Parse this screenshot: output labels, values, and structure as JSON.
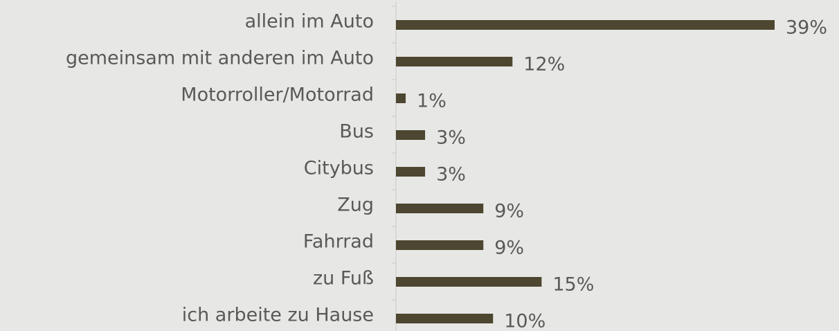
{
  "chart_data": {
    "type": "barh",
    "categories": [
      "allein im Auto",
      "gemeinsam mit anderen im Auto",
      "Motorroller/Motorrad",
      "Bus",
      "Citybus",
      "Zug",
      "Fahrrad",
      "zu Fuß",
      "ich arbeite zu Hause"
    ],
    "values": [
      39,
      12,
      1,
      3,
      3,
      9,
      9,
      15,
      10
    ],
    "value_labels": [
      "39%",
      "12%",
      "1%",
      "3%",
      "3%",
      "9%",
      "9%",
      "15%",
      "10%"
    ],
    "color": "#4d4630"
  }
}
